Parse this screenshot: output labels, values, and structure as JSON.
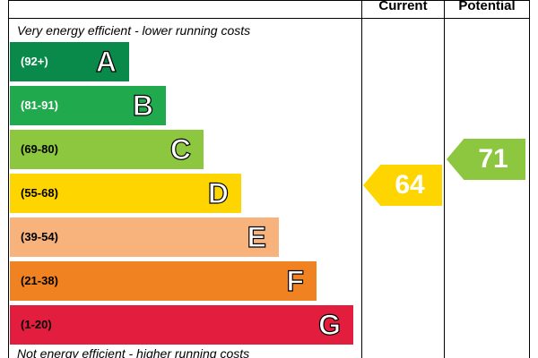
{
  "header": {
    "current_label": "Current",
    "potential_label": "Potential"
  },
  "captions": {
    "top": "Very energy efficient - lower running costs",
    "bottom": "Not energy efficient - higher running costs"
  },
  "bands": [
    {
      "letter": "A",
      "range": "(92+)",
      "color": "#0a8a4a"
    },
    {
      "letter": "B",
      "range": "(81-91)",
      "color": "#21a94e"
    },
    {
      "letter": "C",
      "range": "(69-80)",
      "color": "#8dc63f"
    },
    {
      "letter": "D",
      "range": "(55-68)",
      "color": "#ffd500"
    },
    {
      "letter": "E",
      "range": "(39-54)",
      "color": "#f8b37c"
    },
    {
      "letter": "F",
      "range": "(21-38)",
      "color": "#f18221"
    },
    {
      "letter": "G",
      "range": "(1-20)",
      "color": "#e31d3d"
    }
  ],
  "ratings": {
    "current": {
      "value": "64",
      "color": "#ffd500"
    },
    "potential": {
      "value": "71",
      "color": "#8dc63f"
    }
  }
}
